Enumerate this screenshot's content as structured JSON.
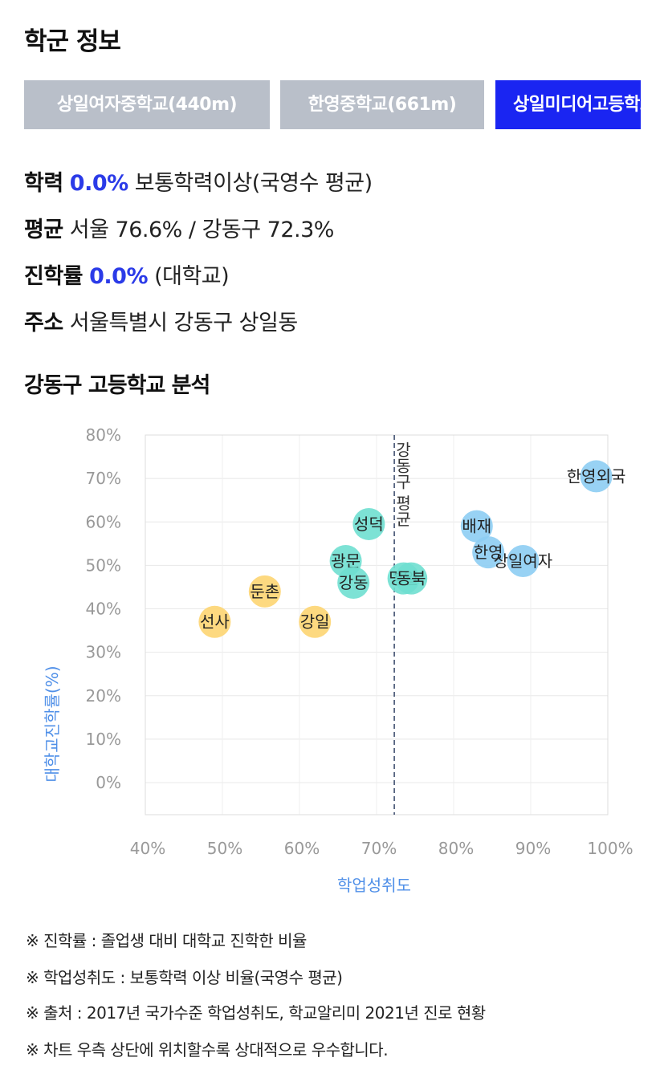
{
  "page_title": "학군 정보",
  "tabs": [
    {
      "label": "상일여자중학교(440m)",
      "active": false
    },
    {
      "label": "한영중학교(661m)",
      "active": false
    },
    {
      "label": "상일미디어고등학교",
      "active": true
    }
  ],
  "info": {
    "academic": {
      "key": "학력",
      "value": "0.0%",
      "suffix": " 보통학력이상(국영수 평균)"
    },
    "average": {
      "key": "평균",
      "value": " 서울 76.6% / 강동구 72.3%"
    },
    "advancement": {
      "key": "진학률",
      "value": "0.0%",
      "suffix": " (대학교)"
    },
    "address": {
      "key": "주소",
      "value": " 서울특별시 강동구 상일동"
    }
  },
  "section_title": "강동구 고등학교 분석",
  "chart_data": {
    "type": "scatter",
    "xlabel": "학업성취도",
    "ylabel": "대학교진학률(%)",
    "xlim": [
      40,
      100
    ],
    "ylim": [
      0,
      80
    ],
    "x_ticks": [
      "40%",
      "50%",
      "60%",
      "70%",
      "80%",
      "90%",
      "100%"
    ],
    "y_ticks": [
      "0%",
      "10%",
      "20%",
      "30%",
      "40%",
      "50%",
      "60%",
      "70%",
      "80%"
    ],
    "grid": true,
    "reference_line": {
      "x": 72.3,
      "label": "강동구 평균"
    },
    "colors": {
      "low": "#fdd572",
      "mid": "#6fdfd0",
      "high": "#8dcdf3",
      "axis_label": "#4f8fe8",
      "ref": "#334466"
    },
    "points": [
      {
        "name": "선사",
        "x": 49.0,
        "y": 37.0,
        "group": "low"
      },
      {
        "name": "둔촌",
        "x": 55.5,
        "y": 44.0,
        "group": "low"
      },
      {
        "name": "강일",
        "x": 62.0,
        "y": 37.0,
        "group": "low"
      },
      {
        "name": "광문",
        "x": 66.0,
        "y": 51.0,
        "group": "mid"
      },
      {
        "name": "강동",
        "x": 67.0,
        "y": 46.0,
        "group": "mid"
      },
      {
        "name": "성덕",
        "x": 69.0,
        "y": 59.5,
        "group": "mid"
      },
      {
        "name": "명일",
        "x": 73.5,
        "y": 47.0,
        "group": "mid"
      },
      {
        "name": "동북",
        "x": 74.5,
        "y": 47.0,
        "group": "mid"
      },
      {
        "name": "배재",
        "x": 83.0,
        "y": 59.0,
        "group": "high"
      },
      {
        "name": "한영",
        "x": 84.5,
        "y": 53.0,
        "group": "high"
      },
      {
        "name": "상일여자",
        "x": 89.0,
        "y": 51.0,
        "group": "high"
      },
      {
        "name": "한영외국",
        "x": 98.5,
        "y": 70.5,
        "group": "high"
      }
    ]
  },
  "notes": [
    "※ 진학률 : 졸업생 대비 대학교 진학한 비율",
    "※ 학업성취도 : 보통학력 이상 비율(국영수 평균)",
    "※ 출처 : 2017년 국가수준 학업성취도, 학교알리미 2021년 진로 현황",
    "※ 차트 우측 상단에 위치할수록 상대적으로 우수합니다."
  ]
}
